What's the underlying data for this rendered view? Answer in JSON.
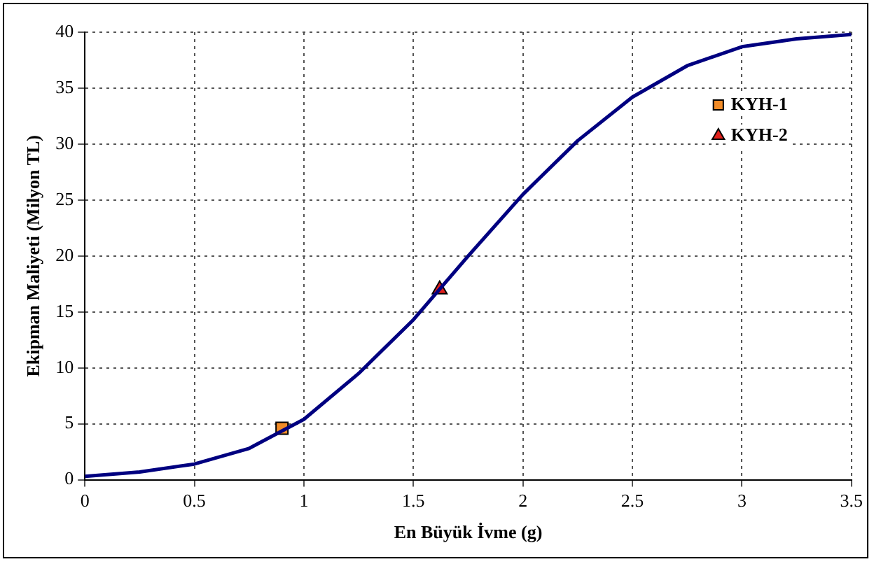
{
  "chart_data": {
    "type": "line",
    "xlabel": "En Büyük İvme (g)",
    "ylabel": "Ekipman Maliyeti (Milyon TL)",
    "xlim": [
      0,
      3.5
    ],
    "xticks": [
      0,
      0.5,
      1,
      1.5,
      2,
      2.5,
      3,
      3.5
    ],
    "ylim": [
      0,
      40
    ],
    "yticks": [
      0,
      5,
      10,
      15,
      20,
      25,
      30,
      35,
      40
    ],
    "grid": true,
    "legend": "top right",
    "series": [
      {
        "color": "#000080",
        "marker": "none",
        "line_style": "solid",
        "x": [
          0,
          0.25,
          0.5,
          0.75,
          1,
          1.25,
          1.5,
          1.75,
          2,
          2.25,
          2.5,
          2.75,
          3,
          3.25,
          3.5
        ],
        "values": [
          0.3,
          0.7,
          1.4,
          2.8,
          5.4,
          9.5,
          14.3,
          20,
          25.5,
          30.3,
          34.2,
          37,
          38.7,
          39.4,
          39.8
        ]
      },
      {
        "type": "scatter",
        "name": "KYH-1",
        "color": "#f28c28",
        "marker": "square",
        "x": [
          0.9
        ],
        "values": [
          4.6
        ]
      },
      {
        "type": "scatter",
        "name": "KYH-2",
        "color": "#e0201b",
        "marker": "triangle",
        "x": [
          1.62
        ],
        "values": [
          17
        ]
      }
    ]
  }
}
